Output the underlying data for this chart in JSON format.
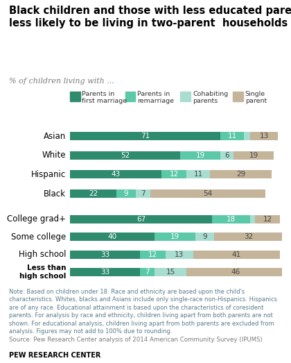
{
  "title": "Black children and those with less educated parents\nless likely to be living in two-parent  households",
  "subtitle": "% of children living with ...",
  "legend_labels": [
    "Parents in\nfirst marriage",
    "Parents in\nremarriage",
    "Cohabiting\nparents",
    "Single\nparent"
  ],
  "colors": [
    "#2e8b6e",
    "#5bc8a8",
    "#a8ddd0",
    "#c4b49a"
  ],
  "categories_race": [
    "Asian",
    "White",
    "Hispanic",
    "Black"
  ],
  "data_race": [
    [
      71,
      11,
      3,
      13
    ],
    [
      52,
      19,
      6,
      19
    ],
    [
      43,
      12,
      11,
      29
    ],
    [
      22,
      9,
      7,
      54
    ]
  ],
  "categories_edu": [
    "College grad+",
    "Some college",
    "High school",
    "Less than\nhigh school"
  ],
  "data_edu": [
    [
      67,
      18,
      2,
      12
    ],
    [
      40,
      19,
      9,
      32
    ],
    [
      33,
      12,
      13,
      41
    ],
    [
      33,
      7,
      15,
      46
    ]
  ],
  "note": "Note: Based on children under 18. Race and ethnicity are based upon the child's\ncharacteristics. Whites, blacks and Asians include only single-race non-Hispanics. Hispanics\nare of any race. Educational attainment is based upon the characteristics of coresident\nparents. For analysis by race and ethnicity, children living apart from both parents are not\nshown. For educational analysis, children living apart from both parents are excluded from\nanalysis. Figures may not add to 100% due to rounding.",
  "source": "Source: Pew Research Center analysis of 2014 American Community Survey (IPUMS)",
  "branding": "PEW RESEARCH CENTER",
  "title_color": "#000000",
  "subtitle_color": "#7a7a7a",
  "note_color": "#5a7a8a",
  "source_color": "#7a7a7a",
  "branding_color": "#000000",
  "label_fontsize": 7.5,
  "bar_height": 0.52
}
